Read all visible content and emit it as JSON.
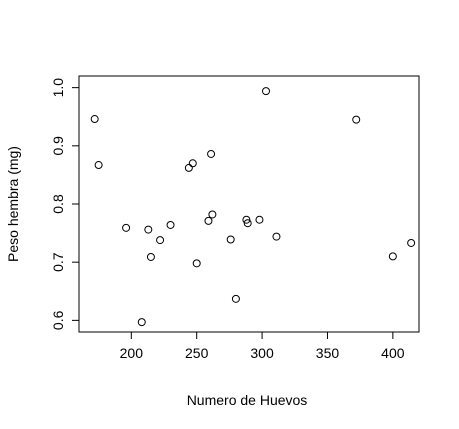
{
  "chart_data": {
    "type": "scatter",
    "title": "",
    "xlabel": "Numero de Huevos",
    "ylabel": "Peso hembra (mg)",
    "xlim": [
      160,
      420
    ],
    "ylim": [
      0.58,
      1.02
    ],
    "xticks": [
      200,
      250,
      300,
      350,
      400
    ],
    "yticks": [
      0.6,
      0.7,
      0.8,
      0.9,
      1.0
    ],
    "xtick_labels": [
      "200",
      "250",
      "300",
      "350",
      "400"
    ],
    "ytick_labels": [
      "0.6",
      "0.7",
      "0.8",
      "0.9",
      "1.0"
    ],
    "grid": false,
    "marker": "open-circle",
    "point_color": "#000000",
    "series": [
      {
        "x": [
          172,
          175,
          196,
          213,
          215,
          222,
          230,
          244,
          247,
          250,
          259,
          261,
          262,
          276,
          280,
          288,
          289,
          298,
          303,
          311,
          372,
          400,
          414,
          208
        ],
        "y": [
          0.946,
          0.867,
          0.759,
          0.756,
          0.709,
          0.738,
          0.764,
          0.862,
          0.87,
          0.698,
          0.771,
          0.886,
          0.782,
          0.739,
          0.637,
          0.773,
          0.767,
          0.773,
          0.994,
          0.744,
          0.945,
          0.71,
          0.733,
          0.597
        ]
      }
    ]
  }
}
